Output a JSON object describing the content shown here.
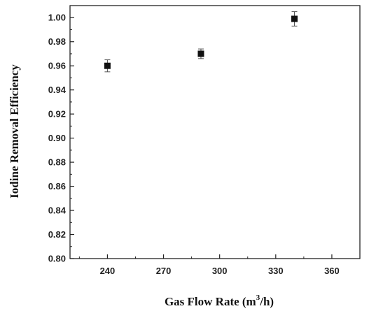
{
  "chart_data": {
    "type": "scatter",
    "title": "",
    "xlabel_main": "Gas Flow Rate (m",
    "xlabel_sup": "3",
    "xlabel_tail": "/h)",
    "ylabel": "Iodine Removal Efficiency",
    "xlim": [
      220,
      375
    ],
    "ylim": [
      0.8,
      1.01
    ],
    "x_ticks": [
      240,
      270,
      300,
      330,
      360
    ],
    "x_tick_labels": [
      "240",
      "270",
      "300",
      "330",
      "360"
    ],
    "y_ticks": [
      0.8,
      0.82,
      0.84,
      0.86,
      0.88,
      0.9,
      0.92,
      0.94,
      0.96,
      0.98,
      1.0
    ],
    "y_tick_labels": [
      "0.80",
      "0.82",
      "0.84",
      "0.86",
      "0.88",
      "0.90",
      "0.92",
      "0.94",
      "0.96",
      "0.98",
      "1.00"
    ],
    "series": [
      {
        "points": [
          {
            "x": 240,
            "y": 0.96,
            "err": 0.005
          },
          {
            "x": 290,
            "y": 0.97,
            "err": 0.004
          },
          {
            "x": 340,
            "y": 0.999,
            "err": 0.006
          }
        ]
      }
    ],
    "grid": false,
    "marker": "square",
    "color": "#111111"
  }
}
